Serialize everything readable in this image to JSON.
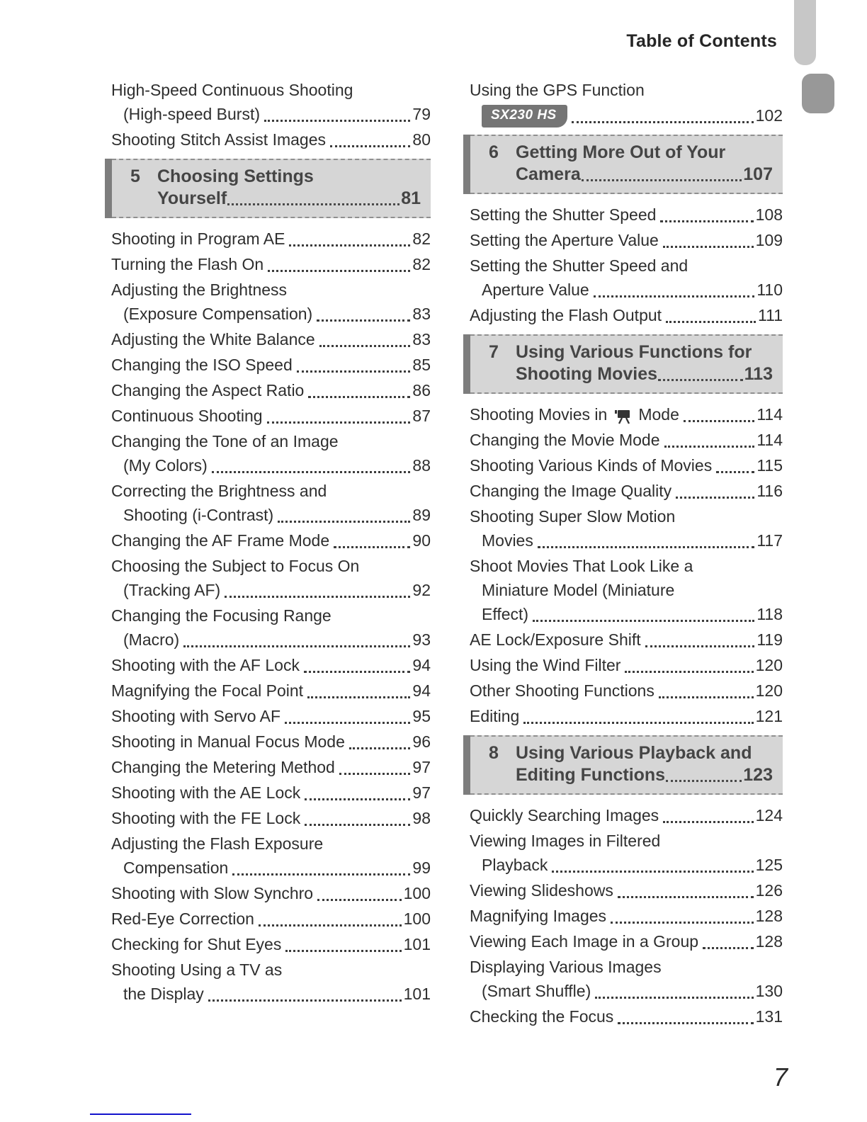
{
  "page": {
    "header_title": "Table of Contents",
    "folio": "7"
  },
  "colors": {
    "chapter_box_bg": "#d6d6d6",
    "chapter_bar": "#7d7d7d",
    "badge_bg": "#757575",
    "footer_rule": "#1212cc",
    "edge_tab_top": "#c7c7c7",
    "edge_tab_chapter": "#989898"
  },
  "icons": {
    "movie_mode": "movie-mode-icon"
  },
  "columns": {
    "left": {
      "items": [
        {
          "type": "entry",
          "lines": [
            "High-Speed Continuous Shooting",
            "(High-speed Burst)"
          ],
          "page": "79"
        },
        {
          "type": "entry",
          "lines": [
            "Shooting Stitch Assist Images"
          ],
          "page": "80"
        },
        {
          "type": "section",
          "number": "5",
          "lines": [
            "Choosing Settings",
            "Yourself"
          ],
          "page": "81"
        },
        {
          "type": "entry",
          "lines": [
            "Shooting in Program AE"
          ],
          "page": "82"
        },
        {
          "type": "entry",
          "lines": [
            "Turning the Flash On"
          ],
          "page": "82"
        },
        {
          "type": "entry",
          "lines": [
            "Adjusting the Brightness",
            "(Exposure Compensation)"
          ],
          "page": "83"
        },
        {
          "type": "entry",
          "lines": [
            "Adjusting the White Balance"
          ],
          "page": "83"
        },
        {
          "type": "entry",
          "lines": [
            "Changing the ISO Speed"
          ],
          "page": "85"
        },
        {
          "type": "entry",
          "lines": [
            "Changing the Aspect Ratio"
          ],
          "page": "86"
        },
        {
          "type": "entry",
          "lines": [
            "Continuous Shooting"
          ],
          "page": "87"
        },
        {
          "type": "entry",
          "lines": [
            "Changing the Tone of an Image",
            "(My Colors)"
          ],
          "page": "88"
        },
        {
          "type": "entry",
          "lines": [
            "Correcting the Brightness and",
            "Shooting (i-Contrast)"
          ],
          "page": "89"
        },
        {
          "type": "entry",
          "lines": [
            "Changing the AF Frame Mode"
          ],
          "page": "90"
        },
        {
          "type": "entry",
          "lines": [
            "Choosing the Subject to Focus On",
            "(Tracking AF)"
          ],
          "page": "92"
        },
        {
          "type": "entry",
          "lines": [
            "Changing the Focusing Range",
            "(Macro)"
          ],
          "page": "93"
        },
        {
          "type": "entry",
          "lines": [
            "Shooting with the AF Lock"
          ],
          "page": "94"
        },
        {
          "type": "entry",
          "lines": [
            "Magnifying the Focal Point"
          ],
          "page": "94"
        },
        {
          "type": "entry",
          "lines": [
            "Shooting with Servo AF"
          ],
          "page": "95"
        },
        {
          "type": "entry",
          "lines": [
            "Shooting in Manual Focus Mode"
          ],
          "page": "96"
        },
        {
          "type": "entry",
          "lines": [
            "Changing the Metering Method"
          ],
          "page": "97"
        },
        {
          "type": "entry",
          "lines": [
            "Shooting with the AE Lock"
          ],
          "page": "97"
        },
        {
          "type": "entry",
          "lines": [
            "Shooting with the FE Lock"
          ],
          "page": "98"
        },
        {
          "type": "entry",
          "lines": [
            "Adjusting the Flash Exposure",
            "Compensation"
          ],
          "page": "99"
        },
        {
          "type": "entry",
          "lines": [
            "Shooting with Slow Synchro"
          ],
          "page": "100"
        },
        {
          "type": "entry",
          "lines": [
            "Red-Eye Correction"
          ],
          "page": "100"
        },
        {
          "type": "entry",
          "lines": [
            "Checking for Shut Eyes"
          ],
          "page": "101"
        },
        {
          "type": "entry",
          "lines": [
            "Shooting Using a TV as",
            "the Display"
          ],
          "page": "101"
        }
      ]
    },
    "right": {
      "items": [
        {
          "type": "entry",
          "lines": [
            "Using the GPS Function"
          ],
          "badge": "SX230 HS",
          "page": "102"
        },
        {
          "type": "section",
          "number": "6",
          "lines": [
            "Getting More Out of Your",
            "Camera"
          ],
          "page": "107"
        },
        {
          "type": "entry",
          "lines": [
            "Setting the Shutter Speed"
          ],
          "page": "108"
        },
        {
          "type": "entry",
          "lines": [
            "Setting the Aperture Value"
          ],
          "page": "109"
        },
        {
          "type": "entry",
          "lines": [
            "Setting the Shutter Speed and",
            "Aperture Value"
          ],
          "page": "110"
        },
        {
          "type": "entry",
          "lines": [
            "Adjusting the Flash Output"
          ],
          "page": "111"
        },
        {
          "type": "section",
          "number": "7",
          "lines": [
            "Using Various Functions for",
            "Shooting Movies"
          ],
          "page": "113"
        },
        {
          "type": "entry",
          "icon": "movie-mode-icon",
          "icon_prefix": "Shooting Movies in",
          "icon_suffix": "Mode",
          "lines": [],
          "page": "114"
        },
        {
          "type": "entry",
          "lines": [
            "Changing the Movie Mode"
          ],
          "page": "114"
        },
        {
          "type": "entry",
          "lines": [
            "Shooting Various Kinds of Movies"
          ],
          "page": "115"
        },
        {
          "type": "entry",
          "lines": [
            "Changing the Image Quality"
          ],
          "page": "116"
        },
        {
          "type": "entry",
          "lines": [
            "Shooting Super Slow Motion",
            "Movies"
          ],
          "page": "117"
        },
        {
          "type": "entry",
          "lines": [
            "Shoot Movies That Look Like a",
            "Miniature Model (Miniature",
            "Effect)"
          ],
          "page": "118"
        },
        {
          "type": "entry",
          "lines": [
            "AE Lock/Exposure Shift"
          ],
          "page": "119"
        },
        {
          "type": "entry",
          "lines": [
            "Using the Wind Filter"
          ],
          "page": "120"
        },
        {
          "type": "entry",
          "lines": [
            "Other Shooting Functions"
          ],
          "page": "120"
        },
        {
          "type": "entry",
          "lines": [
            "Editing"
          ],
          "page": "121"
        },
        {
          "type": "section",
          "number": "8",
          "lines": [
            "Using Various Playback and",
            "Editing Functions"
          ],
          "page": "123"
        },
        {
          "type": "entry",
          "lines": [
            "Quickly Searching Images"
          ],
          "page": "124"
        },
        {
          "type": "entry",
          "lines": [
            "Viewing Images in Filtered",
            "Playback"
          ],
          "page": "125"
        },
        {
          "type": "entry",
          "lines": [
            "Viewing Slideshows"
          ],
          "page": "126"
        },
        {
          "type": "entry",
          "lines": [
            "Magnifying Images"
          ],
          "page": "128"
        },
        {
          "type": "entry",
          "lines": [
            "Viewing Each Image in a Group"
          ],
          "page": "128"
        },
        {
          "type": "entry",
          "lines": [
            "Displaying Various Images",
            "(Smart Shuffle)"
          ],
          "page": "130"
        },
        {
          "type": "entry",
          "lines": [
            "Checking the Focus"
          ],
          "page": "131"
        }
      ]
    }
  }
}
